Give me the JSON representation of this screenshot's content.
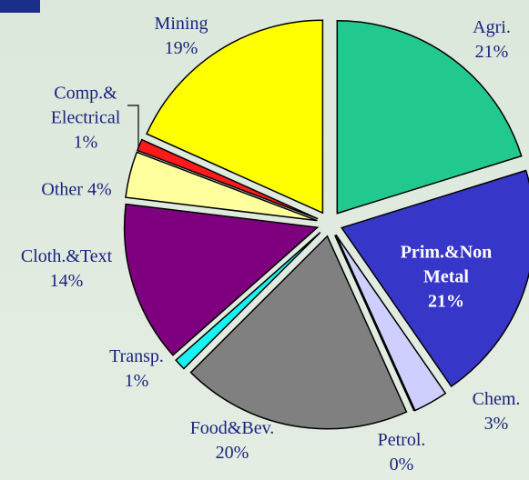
{
  "chart_data": {
    "type": "pie",
    "categories": [
      "Agri.",
      "Prim.&Non Metal",
      "Chem.",
      "Petrol.",
      "Food&Bev.",
      "Transp.",
      "Cloth.&Text",
      "Other",
      "Comp.& Electrical",
      "Mining"
    ],
    "values": [
      21,
      21,
      3,
      0,
      20,
      1,
      14,
      4,
      1,
      19
    ],
    "value_labels": [
      "21%",
      "21%",
      "3%",
      "0%",
      "20%",
      "1%",
      "14%",
      "4%",
      "1%",
      "19%"
    ],
    "colors": [
      "#22c98f",
      "#3636c8",
      "#cfcfff",
      "#b8b8ee",
      "#808080",
      "#19f2f2",
      "#7f007f",
      "#ffff9e",
      "#ff1a1a",
      "#ffff00"
    ]
  }
}
